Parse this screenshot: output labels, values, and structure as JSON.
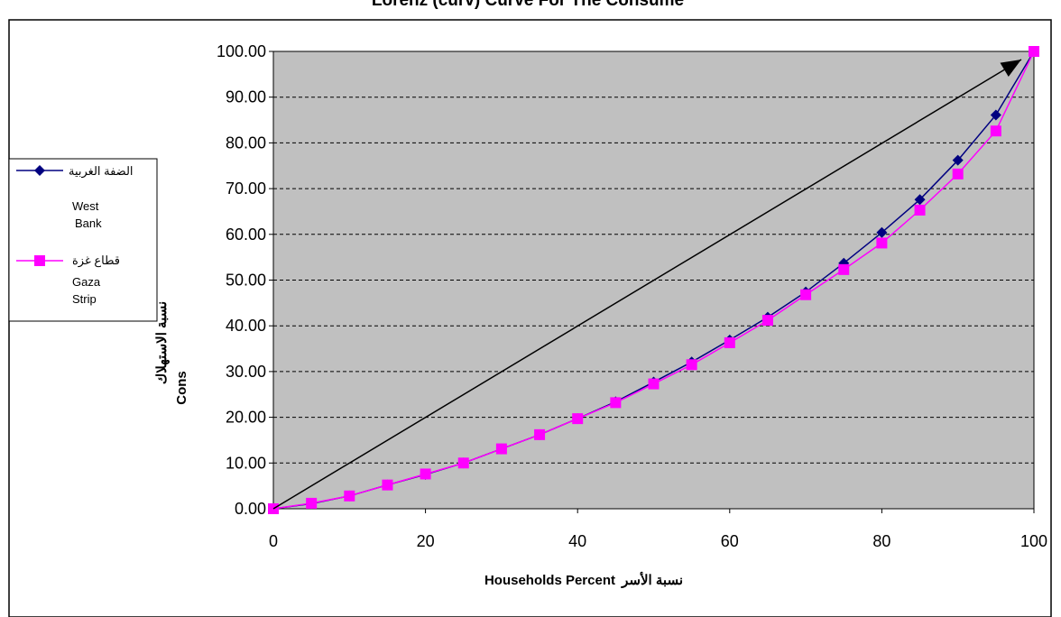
{
  "chart_data": {
    "type": "line",
    "title": "Lorenz (curv) Curve For The Consume",
    "xlabel": "Households Percent",
    "xlabel_ar": "نسبة الأسر",
    "ylabel": "Cons",
    "ylabel_ar": "نسبة الاستهلاك",
    "xlim": [
      0,
      100
    ],
    "ylim": [
      0,
      100
    ],
    "x_ticks": [
      "0",
      "20",
      "40",
      "60",
      "80",
      "100"
    ],
    "y_ticks": [
      "0.00",
      "10.00",
      "20.00",
      "30.00",
      "40.00",
      "50.00",
      "60.00",
      "70.00",
      "80.00",
      "90.00",
      "100.00"
    ],
    "grid": "horizontal dashed",
    "plot_background": "#c0c0c0",
    "legend_position": "left",
    "x": [
      0,
      5,
      10,
      15,
      20,
      25,
      30,
      35,
      40,
      45,
      50,
      55,
      60,
      65,
      70,
      75,
      80,
      85,
      90,
      95,
      100
    ],
    "series": [
      {
        "name_ar": "الضفة الغربية",
        "name": "West Bank",
        "legend_line1": "West",
        "legend_line2": "Bank",
        "color": "#000080",
        "marker": "diamond",
        "values": [
          0,
          1.1,
          2.8,
          5.2,
          7.5,
          10.0,
          13.1,
          16.2,
          19.7,
          23.4,
          27.7,
          32.1,
          36.9,
          41.9,
          47.4,
          53.7,
          60.4,
          67.6,
          76.2,
          86.1,
          100
        ]
      },
      {
        "name_ar": "قطاع غزة",
        "name": "Gaza Strip",
        "legend_line1": "Gaza",
        "legend_line2": "Strip",
        "color": "#ff00ff",
        "marker": "square",
        "values": [
          0,
          1.2,
          2.8,
          5.2,
          7.6,
          10.0,
          13.1,
          16.2,
          19.7,
          23.2,
          27.3,
          31.5,
          36.3,
          41.2,
          46.8,
          52.3,
          58.1,
          65.3,
          73.2,
          82.6,
          100
        ]
      }
    ],
    "equality_line": {
      "from": [
        0,
        0
      ],
      "to": [
        100,
        100
      ],
      "color": "#000000"
    }
  }
}
